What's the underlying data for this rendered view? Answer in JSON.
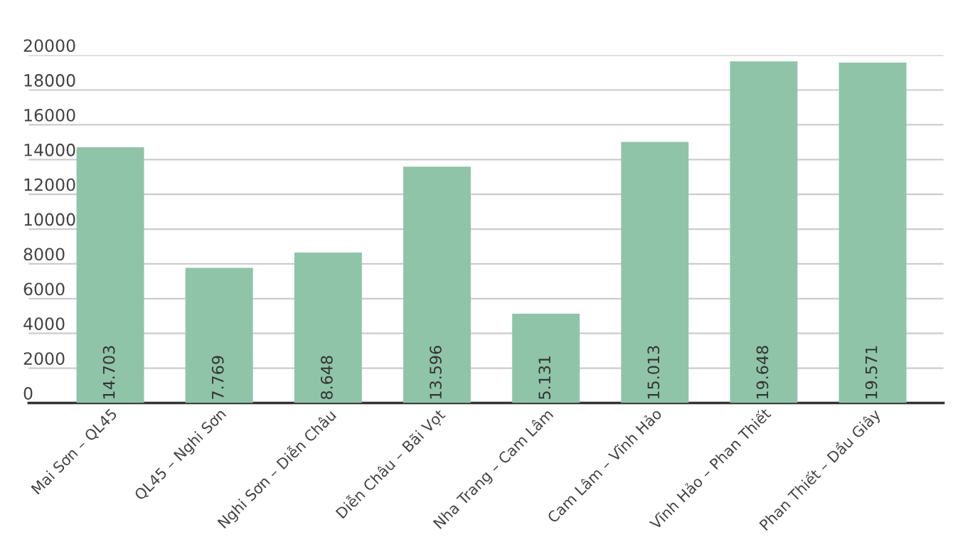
{
  "chart_data": {
    "type": "bar",
    "categories": [
      "Mai Sơn – QL45",
      "QL45 – Nghi Sơn",
      "Nghi Sơn – Diễn Châu",
      "Diễn Châu – Bãi Vọt",
      "Nha Trang – Cam Lâm",
      "Cam Lâm – Vĩnh Hảo",
      "Vĩnh Hảo – Phan Thiết",
      "Phan Thiết – Dầu Giây"
    ],
    "values": [
      14703,
      7769,
      8648,
      13596,
      5131,
      15013,
      19648,
      19571
    ],
    "value_labels": [
      "14.703",
      "7.769",
      "8.648",
      "13.596",
      "5.131",
      "15.013",
      "19.648",
      "19.571"
    ],
    "color": "#8fc4a8",
    "ylim": [
      0,
      20000
    ],
    "yticks": [
      0,
      2000,
      4000,
      6000,
      8000,
      10000,
      12000,
      14000,
      16000,
      18000,
      20000
    ],
    "grid": "y",
    "legend": false
  }
}
